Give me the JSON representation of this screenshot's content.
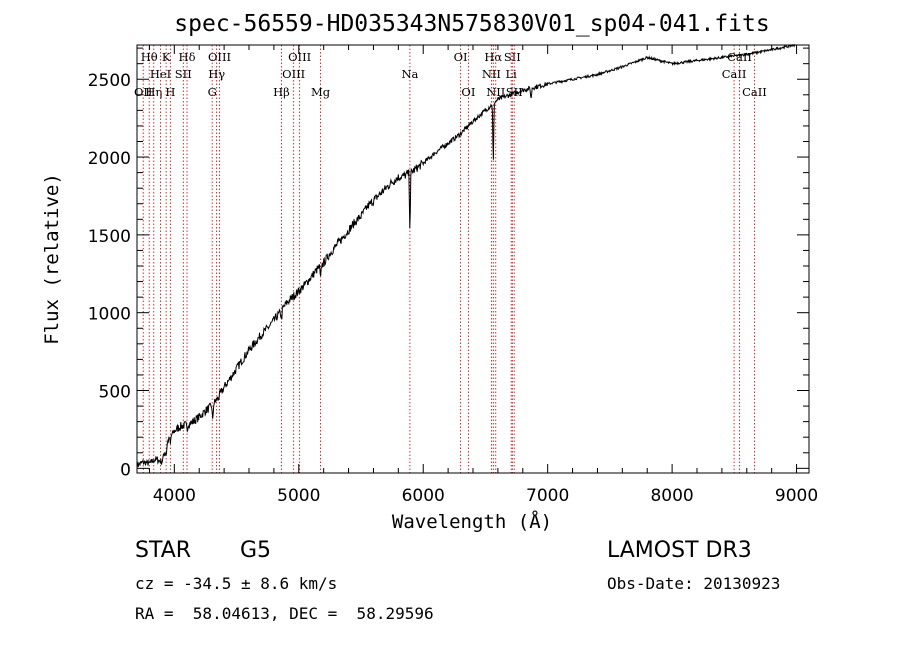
{
  "chart_data": {
    "type": "line",
    "title": "spec-56559-HD035343N575830V01_sp04-041.fits",
    "xlabel": "Wavelength (Å)",
    "ylabel": "Flux (relative)",
    "xlim": [
      3700,
      9100
    ],
    "ylim": [
      -30,
      2720
    ],
    "x_ticks": [
      4000,
      5000,
      6000,
      7000,
      8000,
      9000
    ],
    "y_ticks": [
      0,
      500,
      1000,
      1500,
      2000,
      2500
    ],
    "grid": false,
    "series": [
      {
        "name": "spectrum",
        "x": [
          3700,
          3750,
          3800,
          3850,
          3900,
          3950,
          4000,
          4050,
          4100,
          4150,
          4200,
          4250,
          4300,
          4350,
          4400,
          4450,
          4500,
          4550,
          4600,
          4650,
          4700,
          4750,
          4800,
          4850,
          4900,
          4950,
          5000,
          5050,
          5100,
          5150,
          5200,
          5250,
          5300,
          5350,
          5400,
          5450,
          5500,
          5550,
          5600,
          5650,
          5700,
          5750,
          5800,
          5850,
          5900,
          5950,
          6000,
          6100,
          6200,
          6300,
          6400,
          6500,
          6600,
          6700,
          6800,
          6900,
          7000,
          7200,
          7400,
          7600,
          7800,
          7900,
          8000,
          8200,
          8400,
          8600,
          8800,
          8990
        ],
        "y": [
          20,
          40,
          30,
          60,
          40,
          180,
          240,
          270,
          280,
          300,
          330,
          370,
          400,
          450,
          520,
          580,
          640,
          700,
          760,
          810,
          860,
          900,
          950,
          1000,
          1060,
          1100,
          1140,
          1180,
          1230,
          1280,
          1320,
          1380,
          1430,
          1480,
          1530,
          1580,
          1620,
          1680,
          1720,
          1760,
          1800,
          1840,
          1870,
          1880,
          1900,
          1930,
          1960,
          2030,
          2090,
          2150,
          2230,
          2300,
          2370,
          2400,
          2430,
          2450,
          2470,
          2500,
          2530,
          2580,
          2640,
          2620,
          2600,
          2620,
          2640,
          2660,
          2690,
          2720
        ]
      }
    ],
    "absorption_dips": [
      {
        "x": 3934,
        "depth": 60
      },
      {
        "x": 3968,
        "depth": 50
      },
      {
        "x": 4102,
        "depth": 40
      },
      {
        "x": 4308,
        "depth": 110
      },
      {
        "x": 4861,
        "depth": 60
      },
      {
        "x": 5175,
        "depth": 100
      },
      {
        "x": 5893,
        "depth": 380
      },
      {
        "x": 6563,
        "depth": 420
      },
      {
        "x": 6867,
        "depth": 80
      }
    ],
    "line_markers": [
      {
        "x": 3750,
        "label": "OII",
        "row": 2
      },
      {
        "x": 3798,
        "label": "Hθ",
        "row": 0
      },
      {
        "x": 3835,
        "label": "Hη",
        "row": 2
      },
      {
        "x": 3889,
        "label": "HeI",
        "row": 1
      },
      {
        "x": 3934,
        "label": "K",
        "row": 0
      },
      {
        "x": 3968,
        "label": "H",
        "row": 2
      },
      {
        "x": 4072,
        "label": "SII",
        "row": 1
      },
      {
        "x": 4102,
        "label": "Hδ",
        "row": 0
      },
      {
        "x": 4304,
        "label": "G",
        "row": 2
      },
      {
        "x": 4340,
        "label": "Hγ",
        "row": 1
      },
      {
        "x": 4363,
        "label": "OIII",
        "row": 0
      },
      {
        "x": 4861,
        "label": "Hβ",
        "row": 2
      },
      {
        "x": 4959,
        "label": "OIII",
        "row": 1
      },
      {
        "x": 5007,
        "label": "OIII",
        "row": 0
      },
      {
        "x": 5175,
        "label": "Mg",
        "row": 2
      },
      {
        "x": 5893,
        "label": "Na",
        "row": 1
      },
      {
        "x": 6300,
        "label": "OI",
        "row": 0
      },
      {
        "x": 6363,
        "label": "OI",
        "row": 2
      },
      {
        "x": 6548,
        "label": "NII",
        "row": 1
      },
      {
        "x": 6563,
        "label": "Hα",
        "row": 0
      },
      {
        "x": 6583,
        "label": "NII",
        "row": 2
      },
      {
        "x": 6707,
        "label": "Li",
        "row": 1
      },
      {
        "x": 6716,
        "label": "SII",
        "row": 0
      },
      {
        "x": 6731,
        "label": "SII",
        "row": 2
      },
      {
        "x": 8498,
        "label": "CaII",
        "row": 1
      },
      {
        "x": 8542,
        "label": "CaII",
        "row": 0
      },
      {
        "x": 8662,
        "label": "CaII",
        "row": 2
      }
    ],
    "colors": {
      "spectrum": "#000000",
      "line_marker": "#cc0000",
      "axis": "#000000"
    }
  },
  "info": {
    "object_class": "STAR",
    "subclass": "G5",
    "survey": "LAMOST DR3",
    "redshift": "cz = -34.5 ± 8.6 km/s",
    "obs_date": "Obs-Date: 20130923",
    "coords": "RA =  58.04613, DEC =  58.29596"
  }
}
